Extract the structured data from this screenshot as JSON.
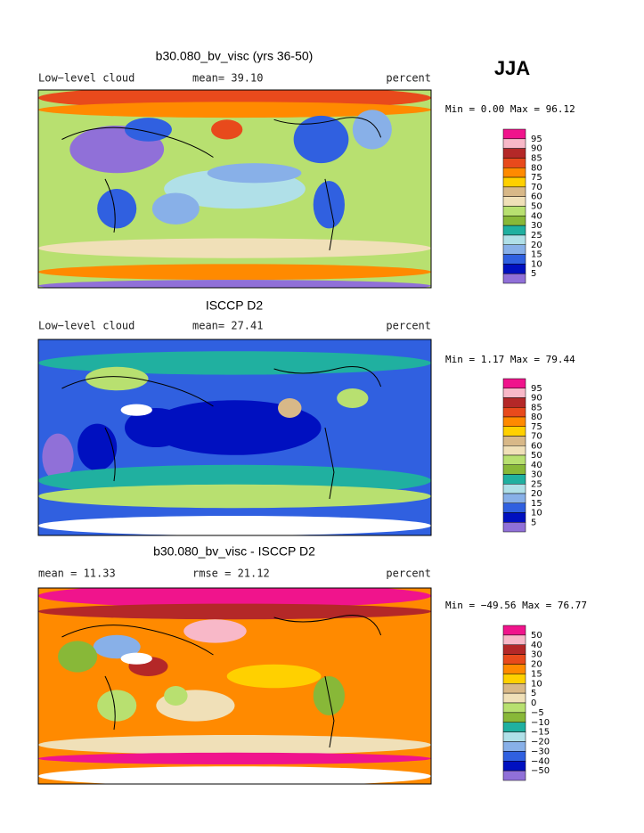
{
  "season": "JJA",
  "colors": [
    "#f0148c",
    "#f8b8c8",
    "#b42828",
    "#e84a1c",
    "#ff8a00",
    "#ffd000",
    "#d8b888",
    "#f0e0b8",
    "#b8e070",
    "#88b838",
    "#20b0a0",
    "#b0e0e8",
    "#88b0e8",
    "#3060e0",
    "#0010c0",
    "#9070d8"
  ],
  "panels": [
    {
      "title": "b30.080_bv_visc (yrs 36-50)",
      "left": "Low−level cloud",
      "center": "mean=  39.10",
      "right": "percent",
      "stats": "Min =   0.00 Max =  96.12",
      "colorbar_labels": [
        "95",
        "90",
        "85",
        "80",
        "75",
        "70",
        "60",
        "50",
        "40",
        "30",
        "25",
        "20",
        "15",
        "10",
        "5"
      ]
    },
    {
      "title": "ISCCP D2",
      "left": "Low−level cloud",
      "center": "mean=  27.41",
      "right": "percent",
      "stats": "Min =   1.17 Max =  79.44",
      "colorbar_labels": [
        "95",
        "90",
        "85",
        "80",
        "75",
        "70",
        "60",
        "50",
        "40",
        "30",
        "25",
        "20",
        "15",
        "10",
        "5"
      ]
    },
    {
      "title": "b30.080_bv_visc - ISCCP D2",
      "left": "mean =  11.33",
      "center": "rmse =  21.12",
      "right": "percent",
      "stats": "Min = −49.56 Max =  76.77",
      "colorbar_labels": [
        "50",
        "40",
        "30",
        "20",
        "15",
        "10",
        "5",
        "0",
        "−5",
        "−10",
        "−15",
        "−20",
        "−30",
        "−40",
        "−50"
      ]
    }
  ]
}
